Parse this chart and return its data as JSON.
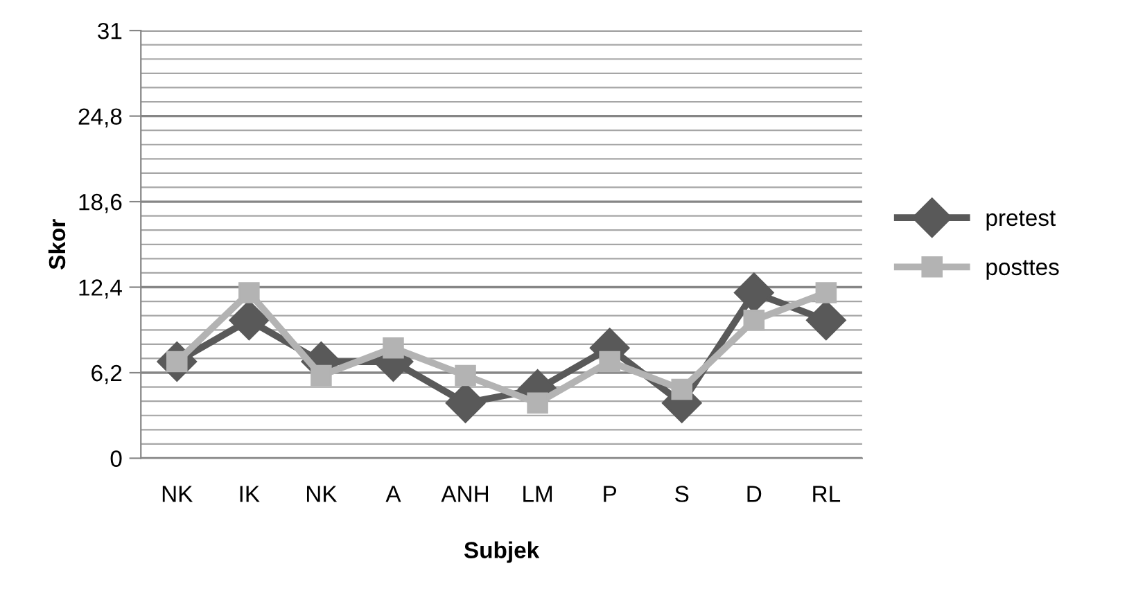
{
  "chart_data": {
    "type": "line",
    "xlabel": "Subjek",
    "ylabel": "Skor",
    "categories": [
      "NK",
      "IK",
      "NK",
      "A",
      "ANH",
      "LM",
      "P",
      "S",
      "D",
      "RL"
    ],
    "series": [
      {
        "name": "pretest",
        "color": "#595959",
        "marker": "diamond",
        "values": [
          7,
          10,
          7,
          7,
          4,
          5,
          8,
          4,
          12,
          10
        ]
      },
      {
        "name": "posttes",
        "color": "#b3b3b3",
        "marker": "square",
        "values": [
          7,
          12,
          6,
          8,
          6,
          4,
          7,
          5,
          10,
          12
        ]
      }
    ],
    "ylim": [
      0,
      31
    ],
    "yticks": [
      0,
      {
        "value": 6.2,
        "label": "6,2"
      },
      {
        "value": 12.4,
        "label": "12,4"
      },
      {
        "value": 18.6,
        "label": "18,6"
      },
      {
        "value": 24.8,
        "label": "24,8"
      },
      31
    ],
    "grid": "y",
    "legend": "right"
  }
}
